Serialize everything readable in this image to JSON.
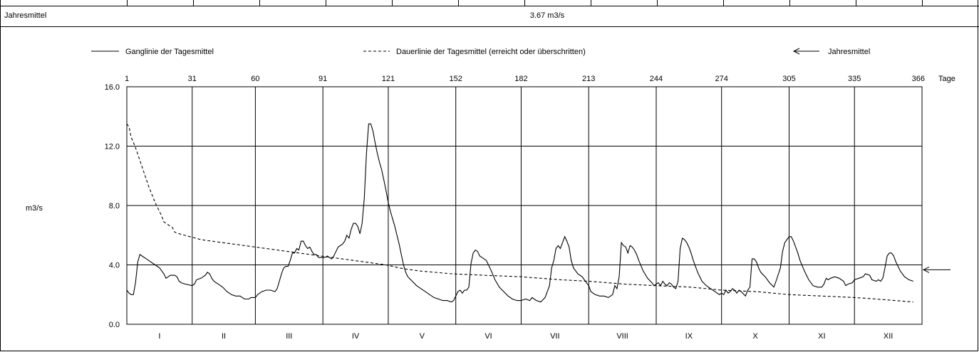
{
  "header_row": {
    "label": "Jahresmittel",
    "value": "3.67 m3/s"
  },
  "legend": {
    "daily_line": "Ganglinie der Tagesmittel",
    "duration_line": "Dauerlinie der Tagesmittel (erreicht oder überschritten)",
    "annual_mean": "Jahresmittel"
  },
  "chart_data": {
    "type": "line",
    "title": "",
    "ylabel": "m3/s",
    "x_unit_label": "Tage",
    "xlim": [
      1,
      366
    ],
    "ylim": [
      0,
      16
    ],
    "grid": true,
    "y_ticks": [
      "0.0",
      "4.0",
      "8.0",
      "12.0",
      "16.0"
    ],
    "y_tick_values": [
      0,
      4,
      8,
      12,
      16
    ],
    "x_ticks": [
      "1",
      "31",
      "60",
      "91",
      "121",
      "152",
      "182",
      "213",
      "244",
      "274",
      "305",
      "335",
      "366"
    ],
    "x_tick_values": [
      1,
      31,
      60,
      91,
      121,
      152,
      182,
      213,
      244,
      274,
      305,
      335,
      366
    ],
    "month_labels": [
      "I",
      "II",
      "III",
      "IV",
      "V",
      "VI",
      "VII",
      "VIII",
      "IX",
      "X",
      "XI",
      "XII"
    ],
    "month_centers": [
      16,
      45.5,
      75.5,
      106,
      136.5,
      167,
      197.5,
      228.5,
      259,
      289.5,
      320,
      350.5
    ],
    "annual_mean": 3.67,
    "series": [
      {
        "name": "Ganglinie der Tagesmittel",
        "style": "solid",
        "points": [
          [
            1,
            2.3
          ],
          [
            2,
            2.1
          ],
          [
            3,
            2.0
          ],
          [
            4,
            2.0
          ],
          [
            5,
            2.8
          ],
          [
            6,
            4.2
          ],
          [
            7,
            4.7
          ],
          [
            8,
            4.6
          ],
          [
            10,
            4.4
          ],
          [
            12,
            4.2
          ],
          [
            14,
            4.0
          ],
          [
            16,
            3.8
          ],
          [
            17,
            3.6
          ],
          [
            18,
            3.4
          ],
          [
            19,
            3.1
          ],
          [
            20,
            3.2
          ],
          [
            21,
            3.3
          ],
          [
            23,
            3.3
          ],
          [
            24,
            3.2
          ],
          [
            25,
            2.9
          ],
          [
            26,
            2.8
          ],
          [
            28,
            2.7
          ],
          [
            31,
            2.6
          ],
          [
            32,
            2.7
          ],
          [
            33,
            3.0
          ],
          [
            35,
            3.1
          ],
          [
            37,
            3.3
          ],
          [
            38,
            3.5
          ],
          [
            39,
            3.4
          ],
          [
            40,
            3.1
          ],
          [
            41,
            2.9
          ],
          [
            43,
            2.7
          ],
          [
            45,
            2.5
          ],
          [
            47,
            2.2
          ],
          [
            49,
            2.0
          ],
          [
            51,
            1.9
          ],
          [
            53,
            1.9
          ],
          [
            55,
            1.7
          ],
          [
            57,
            1.7
          ],
          [
            58,
            1.8
          ],
          [
            60,
            1.8
          ],
          [
            61,
            2.0
          ],
          [
            63,
            2.2
          ],
          [
            65,
            2.3
          ],
          [
            67,
            2.3
          ],
          [
            69,
            2.2
          ],
          [
            70,
            2.4
          ],
          [
            72,
            3.4
          ],
          [
            73,
            3.8
          ],
          [
            74,
            3.9
          ],
          [
            75,
            3.9
          ],
          [
            76,
            4.3
          ],
          [
            77,
            4.8
          ],
          [
            78,
            4.8
          ],
          [
            79,
            5.1
          ],
          [
            80,
            5.0
          ],
          [
            81,
            5.6
          ],
          [
            82,
            5.6
          ],
          [
            83,
            5.3
          ],
          [
            84,
            5.1
          ],
          [
            85,
            5.2
          ],
          [
            86,
            4.9
          ],
          [
            87,
            4.7
          ],
          [
            88,
            4.7
          ],
          [
            89,
            4.5
          ],
          [
            90,
            4.5
          ],
          [
            91,
            4.5
          ],
          [
            92,
            4.5
          ],
          [
            93,
            4.6
          ],
          [
            94,
            4.5
          ],
          [
            95,
            4.4
          ],
          [
            96,
            4.6
          ],
          [
            97,
            4.9
          ],
          [
            98,
            5.2
          ],
          [
            100,
            5.4
          ],
          [
            101,
            5.6
          ],
          [
            102,
            6.0
          ],
          [
            103,
            5.8
          ],
          [
            104,
            6.4
          ],
          [
            105,
            6.8
          ],
          [
            106,
            6.8
          ],
          [
            107,
            6.6
          ],
          [
            108,
            6.1
          ],
          [
            109,
            6.8
          ],
          [
            110,
            8.5
          ],
          [
            111,
            11.5
          ],
          [
            112,
            13.5
          ],
          [
            113,
            13.5
          ],
          [
            114,
            13.0
          ],
          [
            115,
            12.2
          ],
          [
            116,
            11.5
          ],
          [
            117,
            10.9
          ],
          [
            118,
            10.4
          ],
          [
            119,
            9.7
          ],
          [
            120,
            9.0
          ],
          [
            121,
            8.2
          ],
          [
            122,
            7.6
          ],
          [
            123,
            7.1
          ],
          [
            124,
            6.6
          ],
          [
            125,
            6.0
          ],
          [
            126,
            5.4
          ],
          [
            127,
            4.7
          ],
          [
            128,
            4.0
          ],
          [
            129,
            3.5
          ],
          [
            130,
            3.2
          ],
          [
            132,
            2.9
          ],
          [
            134,
            2.6
          ],
          [
            136,
            2.4
          ],
          [
            138,
            2.2
          ],
          [
            140,
            2.0
          ],
          [
            142,
            1.8
          ],
          [
            144,
            1.7
          ],
          [
            146,
            1.6
          ],
          [
            148,
            1.6
          ],
          [
            150,
            1.5
          ],
          [
            151,
            1.6
          ],
          [
            152,
            1.9
          ],
          [
            153,
            2.2
          ],
          [
            154,
            2.3
          ],
          [
            155,
            2.1
          ],
          [
            156,
            2.3
          ],
          [
            157,
            2.3
          ],
          [
            158,
            2.5
          ],
          [
            159,
            4.1
          ],
          [
            160,
            4.8
          ],
          [
            161,
            5.0
          ],
          [
            162,
            4.9
          ],
          [
            163,
            4.6
          ],
          [
            164,
            4.5
          ],
          [
            166,
            4.3
          ],
          [
            168,
            3.7
          ],
          [
            170,
            3.0
          ],
          [
            172,
            2.5
          ],
          [
            174,
            2.2
          ],
          [
            176,
            1.9
          ],
          [
            178,
            1.7
          ],
          [
            180,
            1.6
          ],
          [
            182,
            1.6
          ],
          [
            184,
            1.7
          ],
          [
            186,
            1.6
          ],
          [
            187,
            1.8
          ],
          [
            189,
            1.6
          ],
          [
            191,
            1.5
          ],
          [
            193,
            1.8
          ],
          [
            194,
            2.2
          ],
          [
            195,
            2.6
          ],
          [
            196,
            3.8
          ],
          [
            197,
            4.3
          ],
          [
            198,
            5.1
          ],
          [
            199,
            5.3
          ],
          [
            200,
            5.1
          ],
          [
            201,
            5.5
          ],
          [
            202,
            5.9
          ],
          [
            203,
            5.6
          ],
          [
            204,
            5.2
          ],
          [
            205,
            4.3
          ],
          [
            206,
            3.8
          ],
          [
            208,
            3.4
          ],
          [
            210,
            3.2
          ],
          [
            212,
            2.8
          ],
          [
            213,
            2.6
          ],
          [
            214,
            2.2
          ],
          [
            216,
            2.0
          ],
          [
            218,
            1.9
          ],
          [
            220,
            1.9
          ],
          [
            222,
            1.8
          ],
          [
            224,
            2.0
          ],
          [
            225,
            2.6
          ],
          [
            226,
            2.4
          ],
          [
            227,
            3.2
          ],
          [
            228,
            5.5
          ],
          [
            229,
            5.3
          ],
          [
            230,
            5.2
          ],
          [
            231,
            4.8
          ],
          [
            232,
            5.3
          ],
          [
            233,
            5.2
          ],
          [
            234,
            5.0
          ],
          [
            235,
            4.7
          ],
          [
            236,
            4.3
          ],
          [
            238,
            3.6
          ],
          [
            240,
            3.1
          ],
          [
            242,
            2.8
          ],
          [
            243,
            2.6
          ],
          [
            244,
            2.7
          ],
          [
            245,
            2.8
          ],
          [
            246,
            2.6
          ],
          [
            247,
            2.9
          ],
          [
            248,
            2.7
          ],
          [
            249,
            2.6
          ],
          [
            250,
            2.8
          ],
          [
            251,
            2.7
          ],
          [
            252,
            2.5
          ],
          [
            253,
            2.4
          ],
          [
            254,
            2.9
          ],
          [
            255,
            5.1
          ],
          [
            256,
            5.8
          ],
          [
            257,
            5.7
          ],
          [
            258,
            5.5
          ],
          [
            259,
            5.2
          ],
          [
            260,
            4.8
          ],
          [
            261,
            4.3
          ],
          [
            263,
            3.5
          ],
          [
            265,
            2.9
          ],
          [
            267,
            2.6
          ],
          [
            269,
            2.4
          ],
          [
            271,
            2.2
          ],
          [
            273,
            2.0
          ],
          [
            274,
            2.1
          ],
          [
            275,
            2.0
          ],
          [
            276,
            2.3
          ],
          [
            277,
            2.1
          ],
          [
            278,
            2.2
          ],
          [
            279,
            2.4
          ],
          [
            280,
            2.3
          ],
          [
            281,
            2.1
          ],
          [
            282,
            2.3
          ],
          [
            283,
            2.2
          ],
          [
            285,
            1.9
          ],
          [
            286,
            2.3
          ],
          [
            287,
            2.5
          ],
          [
            288,
            4.4
          ],
          [
            289,
            4.4
          ],
          [
            290,
            4.2
          ],
          [
            291,
            3.8
          ],
          [
            292,
            3.5
          ],
          [
            294,
            3.2
          ],
          [
            296,
            2.8
          ],
          [
            298,
            2.5
          ],
          [
            299,
            2.9
          ],
          [
            301,
            3.8
          ],
          [
            302,
            4.9
          ],
          [
            303,
            5.5
          ],
          [
            304,
            5.7
          ],
          [
            305,
            5.9
          ],
          [
            306,
            5.9
          ],
          [
            307,
            5.6
          ],
          [
            308,
            5.2
          ],
          [
            309,
            4.8
          ],
          [
            310,
            4.3
          ],
          [
            312,
            3.6
          ],
          [
            314,
            3.0
          ],
          [
            316,
            2.6
          ],
          [
            318,
            2.5
          ],
          [
            320,
            2.5
          ],
          [
            321,
            2.7
          ],
          [
            322,
            3.1
          ],
          [
            323,
            3.0
          ],
          [
            324,
            3.1
          ],
          [
            326,
            3.2
          ],
          [
            328,
            3.1
          ],
          [
            330,
            2.9
          ],
          [
            331,
            2.6
          ],
          [
            332,
            2.7
          ],
          [
            334,
            2.8
          ],
          [
            335,
            3.0
          ],
          [
            337,
            3.1
          ],
          [
            339,
            3.2
          ],
          [
            340,
            3.4
          ],
          [
            342,
            3.3
          ],
          [
            343,
            3.0
          ],
          [
            345,
            2.9
          ],
          [
            346,
            3.0
          ],
          [
            347,
            2.9
          ],
          [
            348,
            3.1
          ],
          [
            349,
            3.8
          ],
          [
            350,
            4.6
          ],
          [
            351,
            4.8
          ],
          [
            352,
            4.8
          ],
          [
            353,
            4.6
          ],
          [
            354,
            4.2
          ],
          [
            356,
            3.6
          ],
          [
            358,
            3.2
          ],
          [
            360,
            3.0
          ],
          [
            362,
            2.9
          ]
        ]
      },
      {
        "name": "Dauerlinie der Tagesmittel (erreicht oder überschritten)",
        "style": "dashed",
        "points": [
          [
            1,
            13.5
          ],
          [
            2,
            13.3
          ],
          [
            3,
            12.6
          ],
          [
            5,
            11.9
          ],
          [
            8,
            10.6
          ],
          [
            11,
            9.3
          ],
          [
            14,
            8.2
          ],
          [
            17,
            7.3
          ],
          [
            18,
            6.9
          ],
          [
            19,
            6.8
          ],
          [
            21,
            6.6
          ],
          [
            22,
            6.5
          ],
          [
            23,
            6.2
          ],
          [
            25,
            6.1
          ],
          [
            30,
            5.9
          ],
          [
            35,
            5.7
          ],
          [
            45,
            5.5
          ],
          [
            60,
            5.2
          ],
          [
            75,
            4.9
          ],
          [
            90,
            4.6
          ],
          [
            105,
            4.3
          ],
          [
            120,
            4.0
          ],
          [
            126,
            3.8
          ],
          [
            130,
            3.7
          ],
          [
            135,
            3.6
          ],
          [
            150,
            3.4
          ],
          [
            165,
            3.3
          ],
          [
            182,
            3.2
          ],
          [
            200,
            3.0
          ],
          [
            213,
            2.9
          ],
          [
            230,
            2.7
          ],
          [
            244,
            2.6
          ],
          [
            260,
            2.5
          ],
          [
            274,
            2.3
          ],
          [
            290,
            2.2
          ],
          [
            305,
            2.0
          ],
          [
            320,
            1.9
          ],
          [
            335,
            1.8
          ],
          [
            345,
            1.7
          ],
          [
            362,
            1.5
          ]
        ]
      }
    ]
  }
}
